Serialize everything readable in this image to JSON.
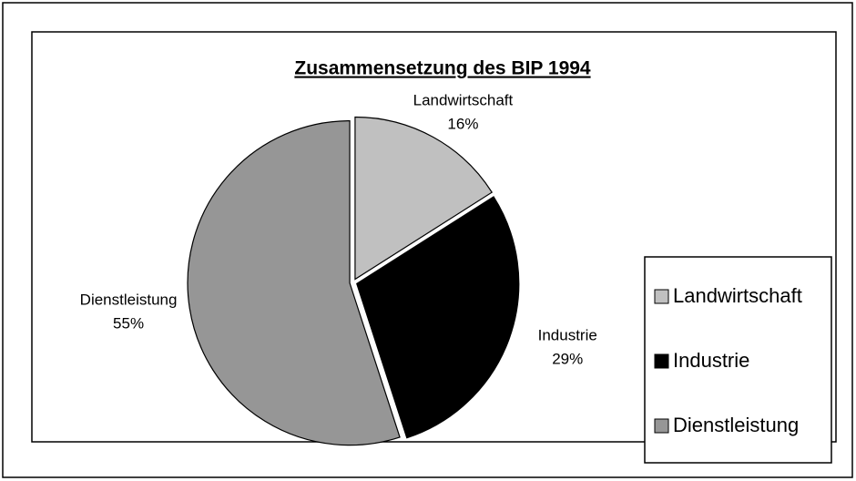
{
  "chart_data": {
    "type": "pie",
    "title": "Zusammensetzung des BIP 1994",
    "categories": [
      "Landwirtschaft",
      "Industrie",
      "Dienstleistung"
    ],
    "values": [
      16,
      29,
      55
    ],
    "value_labels": [
      "16%",
      "29%",
      "55%"
    ],
    "colors": [
      "#c0c0c0",
      "#000000",
      "#969696"
    ],
    "legend": "right"
  }
}
